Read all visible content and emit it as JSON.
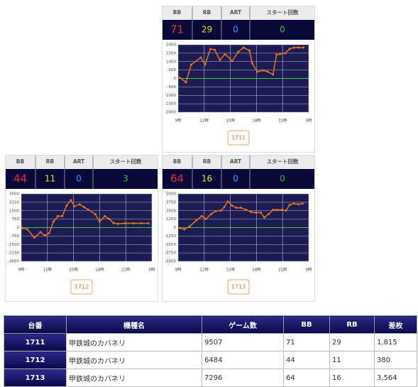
{
  "panels": [
    {
      "machine_no": "1711",
      "stats": {
        "labels": [
          "BB",
          "RB",
          "ART",
          "スタート回数"
        ],
        "values": [
          71,
          29,
          0,
          0
        ]
      },
      "chart_data": {
        "type": "line",
        "x": [
          9.2,
          9.9,
          10.5,
          11.6,
          12.1,
          12.7,
          13.2,
          13.8,
          14.4,
          15.2,
          15.9,
          16.5,
          17.2,
          17.5,
          18.1,
          18.8,
          19.3,
          19.9,
          20.3,
          20.7,
          21.3,
          21.8,
          22.3,
          22.8,
          23.4
        ],
        "series": [
          {
            "color": "#e8731e",
            "values": [
              50,
              -230,
              820,
              1240,
              820,
              1750,
              1700,
              1100,
              1450,
              1030,
              1580,
              1830,
              1660,
              900,
              400,
              480,
              400,
              230,
              1410,
              1450,
              1500,
              1750,
              1830,
              1830,
              1830
            ]
          }
        ],
        "xlim": [
          9,
          24
        ],
        "ylim": [
          -2000,
          2000
        ],
        "yticks": [
          2000,
          1500,
          1000,
          500,
          0,
          -500,
          -1000,
          -1500,
          -2000
        ],
        "xticks": [
          {
            "value": 9,
            "label": "9時"
          },
          {
            "value": 12,
            "label": "12時"
          },
          {
            "value": 15,
            "label": "15時"
          },
          {
            "value": 18,
            "label": "18時"
          },
          {
            "value": 21,
            "label": "21時"
          },
          {
            "value": 24,
            "label": "0時"
          }
        ],
        "grid": true
      }
    },
    {
      "machine_no": "1712",
      "stats": {
        "labels": [
          "BB",
          "RB",
          "ART",
          "スタート回数"
        ],
        "values": [
          44,
          11,
          0,
          3
        ]
      },
      "chart_data": {
        "type": "line",
        "x": [
          9.1,
          9.7,
          10.5,
          11.2,
          11.7,
          12.2,
          12.7,
          13.2,
          13.7,
          14.2,
          14.7,
          15.1,
          15.7,
          16.2,
          16.7,
          17.5,
          18.0,
          18.6,
          19.1,
          19.6,
          20.1,
          20.9,
          21.9,
          22.8,
          23.6
        ],
        "series": [
          {
            "color": "#e8731e",
            "values": [
              -30,
              -150,
              -900,
              -400,
              -700,
              -500,
              530,
              1020,
              1020,
              1950,
              2440,
              1890,
              2070,
              1820,
              1580,
              1200,
              530,
              1020,
              770,
              400,
              340,
              380,
              380,
              380,
              380
            ]
          }
        ],
        "xlim": [
          9,
          24
        ],
        "ylim": [
          -3000,
          3000
        ],
        "yticks": [
          3000,
          2250,
          1500,
          750,
          0,
          -750,
          -1500,
          -2250,
          -3000
        ],
        "xticks": [
          {
            "value": 9,
            "label": "9時"
          },
          {
            "value": 12,
            "label": "12時"
          },
          {
            "value": 15,
            "label": "15時"
          },
          {
            "value": 18,
            "label": "18時"
          },
          {
            "value": 21,
            "label": "21時"
          },
          {
            "value": 24,
            "label": "0時"
          }
        ],
        "grid": true
      }
    },
    {
      "machine_no": "1713",
      "stats": {
        "labels": [
          "BB",
          "RB",
          "ART",
          "スタート回数"
        ],
        "values": [
          64,
          16,
          0,
          0
        ]
      },
      "chart_data": {
        "type": "line",
        "x": [
          9.2,
          9.7,
          10.3,
          11.1,
          11.7,
          12.2,
          12.8,
          13.3,
          13.9,
          14.3,
          14.7,
          15.2,
          15.7,
          16.2,
          16.8,
          17.4,
          17.9,
          18.5,
          18.9,
          19.4,
          19.9,
          20.4,
          20.9,
          21.4,
          21.8,
          22.3,
          22.8,
          23.3
        ],
        "series": [
          {
            "color": "#e8731e",
            "values": [
              -50,
              -260,
              150,
              1080,
              1700,
              1290,
              2010,
              2420,
              2530,
              3040,
              3870,
              3250,
              2940,
              2940,
              2630,
              2320,
              2220,
              2220,
              1500,
              2010,
              2630,
              2630,
              2630,
              2530,
              3350,
              3560,
              3450,
              3560
            ]
          }
        ],
        "xlim": [
          9,
          24
        ],
        "ylim": [
          -5000,
          5000
        ],
        "yticks": [
          5000,
          3750,
          2500,
          1250,
          0,
          -1250,
          -2500,
          -3750,
          -5000
        ],
        "xticks": [
          {
            "value": 9,
            "label": "9時"
          },
          {
            "value": 12,
            "label": "12時"
          },
          {
            "value": 15,
            "label": "15時"
          },
          {
            "value": 18,
            "label": "18時"
          },
          {
            "value": 21,
            "label": "21時"
          },
          {
            "value": 24,
            "label": "0時"
          }
        ],
        "grid": true
      }
    }
  ],
  "table": {
    "header": [
      "台番",
      "機種名",
      "ゲーム数",
      "BB",
      "RB",
      "差枚"
    ],
    "rows": [
      [
        "1711",
        "甲鉄城のカバネリ",
        "9507",
        "71",
        "29",
        "1,815"
      ],
      [
        "1712",
        "甲鉄城のカバネリ",
        "6484",
        "44",
        "11",
        "380"
      ],
      [
        "1713",
        "甲鉄城のカバネリ",
        "7296",
        "64",
        "16",
        "3,564"
      ]
    ]
  }
}
